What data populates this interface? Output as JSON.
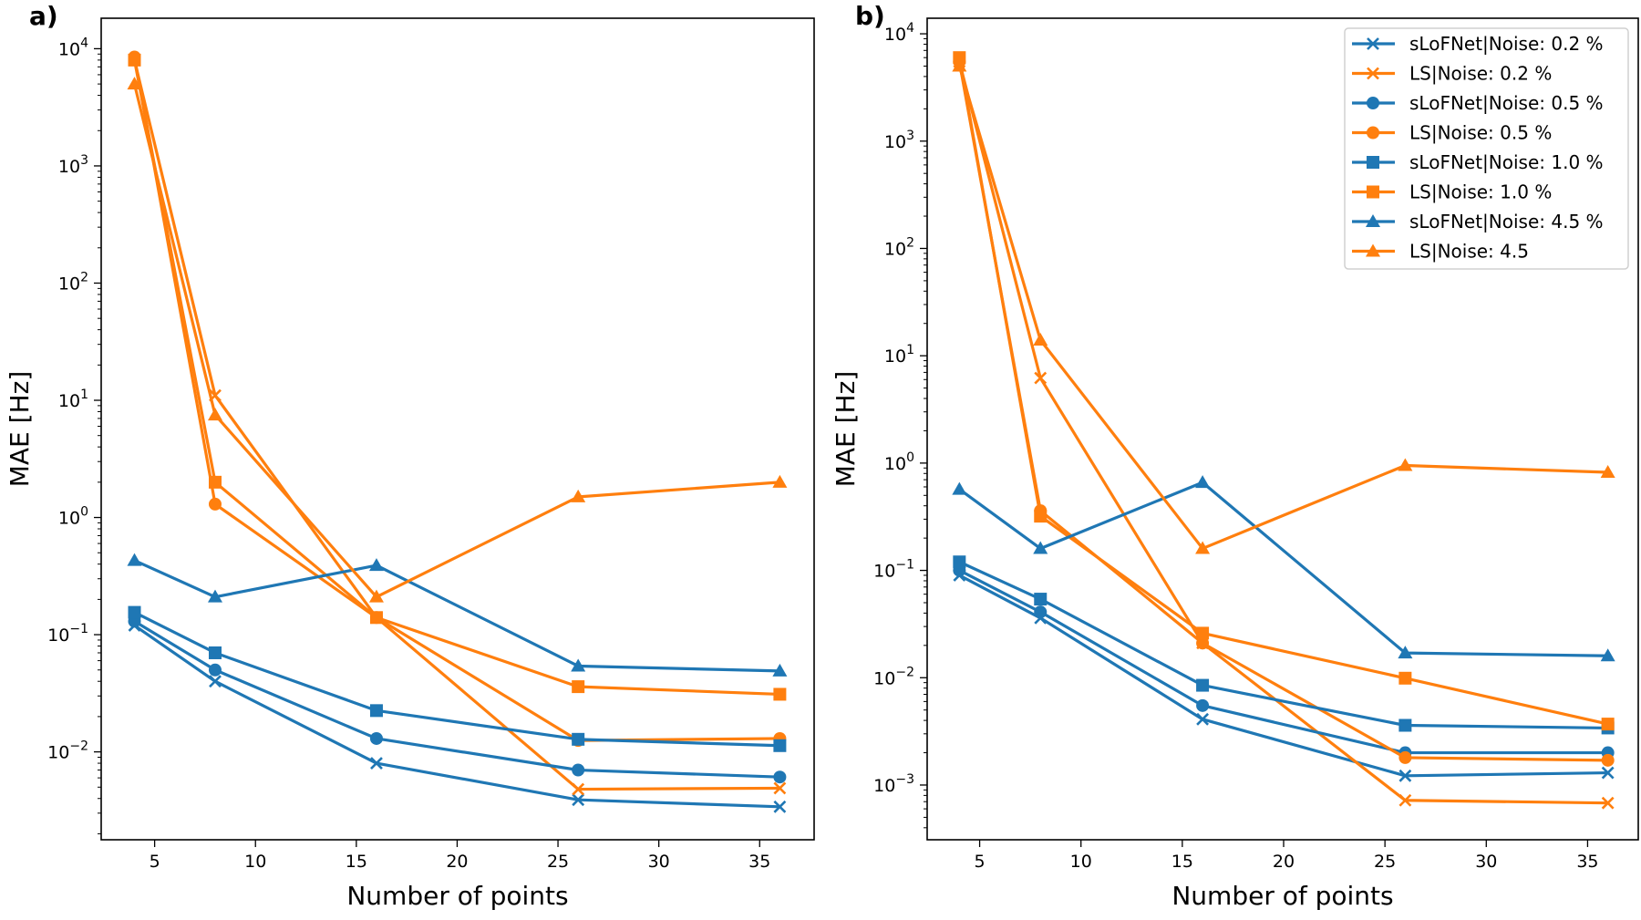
{
  "chart_data": [
    {
      "type": "line",
      "panel_label": "a)",
      "xlabel": "Number of points",
      "ylabel": "MAE [Hz]",
      "yscale": "log",
      "xlim": [
        2.35,
        37.7
      ],
      "ylim_log10": [
        -2.75,
        4.26
      ],
      "xticks": [
        5,
        10,
        15,
        20,
        25,
        30,
        35
      ],
      "yticks_exp": [
        -2,
        -1,
        0,
        1,
        2,
        3,
        4
      ],
      "x": [
        4,
        8,
        16,
        26,
        36
      ],
      "series": [
        {
          "name": "sLoFNet|Noise: 0.2 %",
          "color": "#1f77b4",
          "marker": "x",
          "values": [
            0.12,
            0.04,
            0.008,
            0.0039,
            0.0034
          ]
        },
        {
          "name": "LS|Noise: 0.2 %",
          "color": "#ff7f0e",
          "marker": "x",
          "values": [
            8000,
            11,
            0.14,
            0.0048,
            0.0049
          ]
        },
        {
          "name": "sLoFNet|Noise: 0.5 %",
          "color": "#1f77b4",
          "marker": "o",
          "values": [
            0.13,
            0.05,
            0.013,
            0.007,
            0.0061
          ]
        },
        {
          "name": "LS|Noise: 0.5 %",
          "color": "#ff7f0e",
          "marker": "o",
          "values": [
            8500,
            1.3,
            0.14,
            0.0125,
            0.013
          ]
        },
        {
          "name": "sLoFNet|Noise: 1.0 %",
          "color": "#1f77b4",
          "marker": "s",
          "values": [
            0.155,
            0.07,
            0.0225,
            0.0128,
            0.0113
          ]
        },
        {
          "name": "LS|Noise: 1.0 %",
          "color": "#ff7f0e",
          "marker": "s",
          "values": [
            8000,
            2.0,
            0.14,
            0.036,
            0.031
          ]
        },
        {
          "name": "sLoFNet|Noise: 4.5 %",
          "color": "#1f77b4",
          "marker": "^",
          "values": [
            0.43,
            0.21,
            0.39,
            0.054,
            0.049
          ]
        },
        {
          "name": "LS|Noise: 4.5",
          "color": "#ff7f0e",
          "marker": "^",
          "values": [
            5000,
            7.5,
            0.21,
            1.5,
            2.0
          ]
        }
      ]
    },
    {
      "type": "line",
      "panel_label": "b)",
      "xlabel": "Number of points",
      "ylabel": "MAE [Hz]",
      "yscale": "log",
      "xlim": [
        2.41,
        37.5
      ],
      "ylim_log10": [
        -3.51,
        4.145
      ],
      "xticks": [
        5,
        10,
        15,
        20,
        25,
        30,
        35
      ],
      "yticks_exp": [
        -3,
        -2,
        -1,
        0,
        1,
        2,
        3,
        4
      ],
      "legend": "top-right",
      "x": [
        4,
        8,
        16,
        26,
        36
      ],
      "series": [
        {
          "name": "sLoFNet|Noise: 0.2 %",
          "color": "#1f77b4",
          "marker": "x",
          "values": [
            0.09,
            0.036,
            0.0041,
            0.00122,
            0.0013
          ]
        },
        {
          "name": "LS|Noise: 0.2 %",
          "color": "#ff7f0e",
          "marker": "x",
          "values": [
            5500,
            6.2,
            0.021,
            0.00072,
            0.00068
          ]
        },
        {
          "name": "sLoFNet|Noise: 0.5 %",
          "color": "#1f77b4",
          "marker": "o",
          "values": [
            0.1,
            0.041,
            0.0055,
            0.002,
            0.002
          ]
        },
        {
          "name": "LS|Noise: 0.5 %",
          "color": "#ff7f0e",
          "marker": "o",
          "values": [
            5500,
            0.36,
            0.021,
            0.0018,
            0.0017
          ]
        },
        {
          "name": "sLoFNet|Noise: 1.0 %",
          "color": "#1f77b4",
          "marker": "s",
          "values": [
            0.12,
            0.054,
            0.0085,
            0.0036,
            0.0034
          ]
        },
        {
          "name": "LS|Noise: 1.0 %",
          "color": "#ff7f0e",
          "marker": "s",
          "values": [
            6000,
            0.32,
            0.026,
            0.0099,
            0.0037
          ]
        },
        {
          "name": "sLoFNet|Noise: 4.5 %",
          "color": "#1f77b4",
          "marker": "^",
          "values": [
            0.57,
            0.16,
            0.66,
            0.017,
            0.016
          ]
        },
        {
          "name": "LS|Noise: 4.5",
          "color": "#ff7f0e",
          "marker": "^",
          "values": [
            5000,
            14,
            0.16,
            0.95,
            0.82
          ]
        }
      ]
    }
  ]
}
